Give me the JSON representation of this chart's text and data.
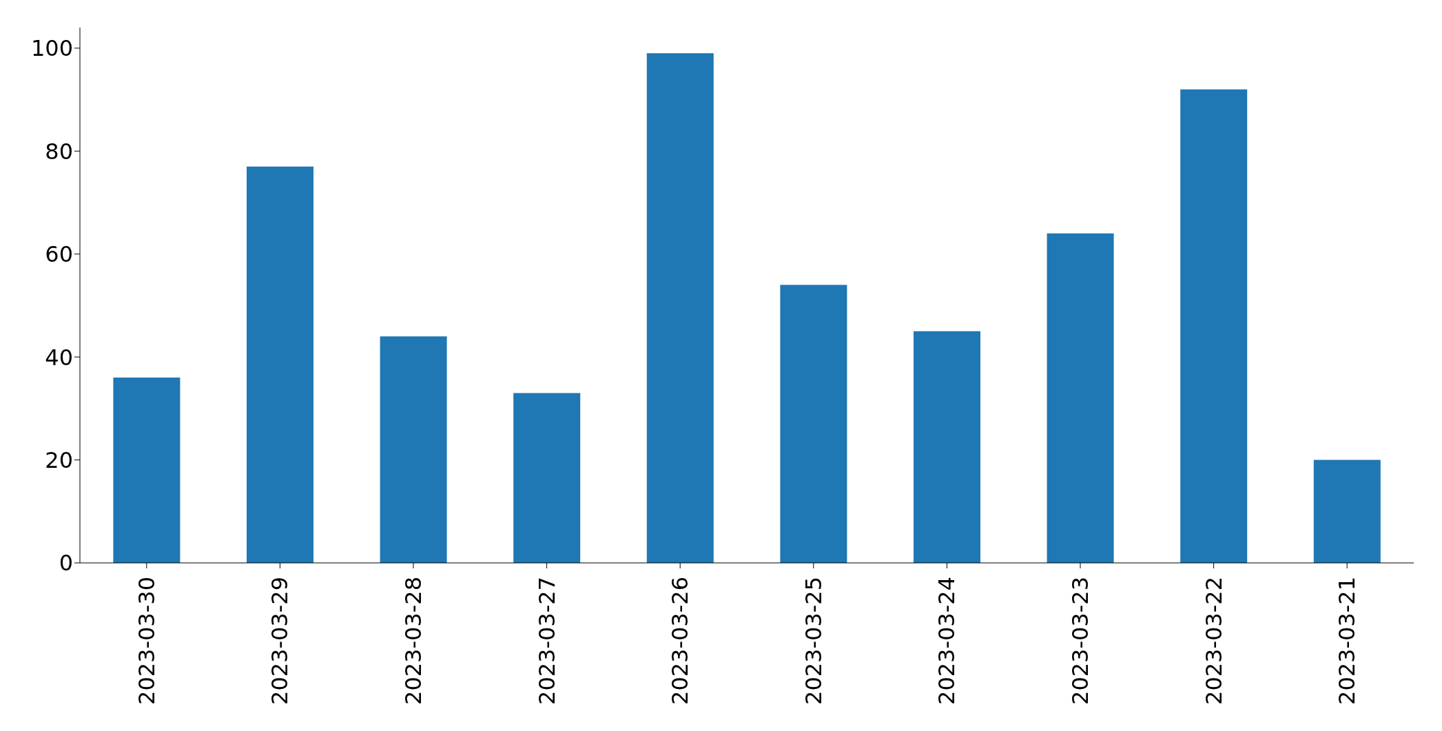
{
  "chart_data": {
    "type": "bar",
    "categories": [
      "2023-03-30",
      "2023-03-29",
      "2023-03-28",
      "2023-03-27",
      "2023-03-26",
      "2023-03-25",
      "2023-03-24",
      "2023-03-23",
      "2023-03-22",
      "2023-03-21"
    ],
    "values": [
      36,
      77,
      44,
      33,
      99,
      54,
      45,
      64,
      92,
      20
    ],
    "color": "#1f77b4",
    "ylim": [
      0,
      104
    ],
    "yticks": [
      0,
      20,
      40,
      60,
      80,
      100
    ]
  }
}
